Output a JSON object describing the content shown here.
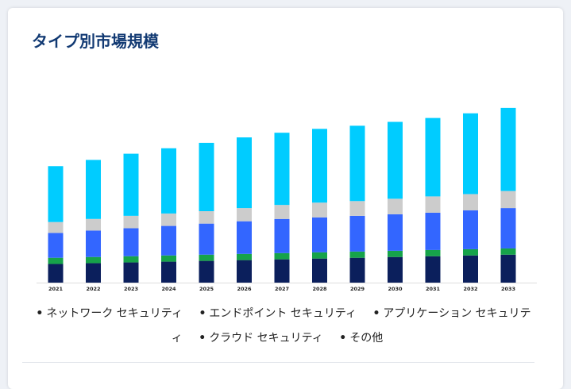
{
  "title": "タイプ別市場規模",
  "chart_data": {
    "type": "bar",
    "stacked": true,
    "categories": [
      "2021",
      "2022",
      "2023",
      "2024",
      "2025",
      "2026",
      "2027",
      "2028",
      "2029",
      "2030",
      "2031",
      "2032",
      "2033"
    ],
    "series": [
      {
        "name": "クラウド セキュリティ",
        "color": "#0b1f5c",
        "values": [
          12,
          12.5,
          13,
          13.5,
          14,
          14.5,
          15,
          15.5,
          16,
          16.5,
          17,
          17.5,
          18
        ]
      },
      {
        "name": "エンドポイント セキュリティ",
        "color": "#16a34a",
        "values": [
          4,
          4,
          4,
          4,
          4,
          4,
          4,
          4,
          4,
          4,
          4,
          4,
          4
        ]
      },
      {
        "name": "アプリケーション セキュリティ",
        "color": "#3366ff",
        "values": [
          16,
          17,
          18,
          19,
          20,
          21,
          22,
          22.5,
          23,
          23.5,
          24,
          25,
          26
        ]
      },
      {
        "name": "その他",
        "color": "#cccccc",
        "values": [
          7,
          7.5,
          8,
          8,
          8,
          8.5,
          9,
          9.5,
          9.5,
          10,
          10.5,
          10.5,
          11
        ]
      },
      {
        "name": "ネットワーク セキュリティ",
        "color": "#00ccff",
        "values": [
          36,
          38,
          40,
          42,
          44,
          45.5,
          46.5,
          47.5,
          48.5,
          49.5,
          50.5,
          52,
          53.5
        ]
      }
    ],
    "ylim": [
      0,
      115
    ],
    "grid": false
  },
  "legend": [
    {
      "label": "ネットワーク セキュリティ"
    },
    {
      "label": "エンドポイント セキュリティ"
    },
    {
      "label": "アプリケーション セキュリティ"
    },
    {
      "label": "クラウド セキュリティ"
    },
    {
      "label": "その他"
    }
  ]
}
